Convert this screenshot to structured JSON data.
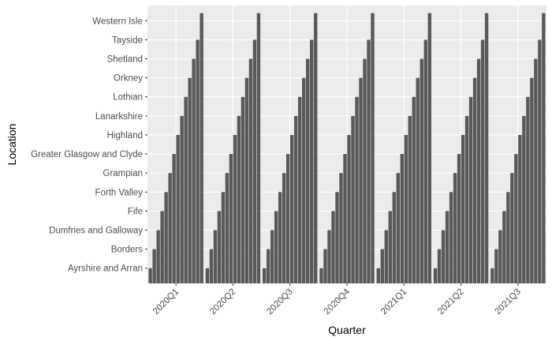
{
  "chart_data": {
    "type": "bar",
    "xlabel": "Quarter",
    "ylabel": "Location",
    "categories": [
      "2020Q1",
      "2020Q2",
      "2020Q3",
      "2020Q4",
      "2021Q1",
      "2021Q2",
      "2021Q3"
    ],
    "locations": [
      "Ayrshire and Arran",
      "Borders",
      "Dumfries and Galloway",
      "Fife",
      "Forth Valley",
      "Grampian",
      "Greater Glasgow and Clyde",
      "Highland",
      "Lanarkshire",
      "Lothian",
      "Orkney",
      "Shetland",
      "Tayside",
      "Western Isle"
    ],
    "bar_fill": "#595959",
    "panel_bg": "#ebebeb",
    "grid_color": "#ffffff",
    "grid": true,
    "legend": "none"
  }
}
